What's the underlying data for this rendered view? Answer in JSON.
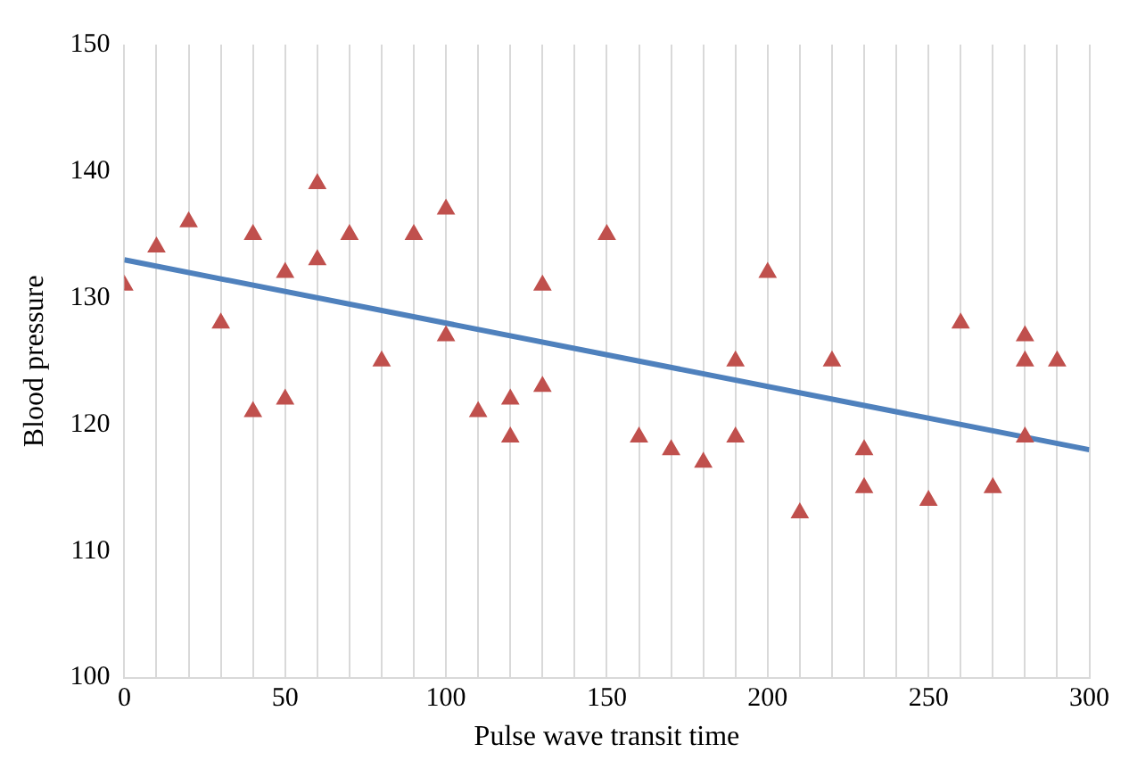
{
  "chart_data": {
    "type": "scatter",
    "xlabel": "Pulse wave transit time",
    "ylabel": "Blood pressure",
    "grid": "x",
    "xlim": [
      0,
      300
    ],
    "xticks": [
      0,
      {
        "value": 10,
        "label": null
      },
      {
        "value": 20,
        "label": null
      },
      {
        "value": 30,
        "label": null
      },
      {
        "value": 40,
        "label": null
      },
      50,
      {
        "value": 60,
        "label": null
      },
      {
        "value": 70,
        "label": null
      },
      {
        "value": 80,
        "label": null
      },
      {
        "value": 90,
        "label": null
      },
      100,
      {
        "value": 110,
        "label": null
      },
      {
        "value": 120,
        "label": null
      },
      {
        "value": 130,
        "label": null
      },
      {
        "value": 140,
        "label": null
      },
      150,
      {
        "value": 160,
        "label": null
      },
      {
        "value": 170,
        "label": null
      },
      {
        "value": 180,
        "label": null
      },
      {
        "value": 190,
        "label": null
      },
      200,
      {
        "value": 210,
        "label": null
      },
      {
        "value": 220,
        "label": null
      },
      {
        "value": 230,
        "label": null
      },
      {
        "value": 240,
        "label": null
      },
      250,
      {
        "value": 260,
        "label": null
      },
      {
        "value": 270,
        "label": null
      },
      {
        "value": 280,
        "label": null
      },
      {
        "value": 290,
        "label": null
      },
      300
    ],
    "ylim": [
      100,
      150
    ],
    "yticks": [
      100,
      110,
      120,
      130,
      140,
      150
    ],
    "series": [
      {
        "marker": "triangle",
        "color": "#c0504d",
        "x": [
          0,
          10,
          20,
          30,
          40,
          40,
          50,
          50,
          60,
          60,
          70,
          80,
          90,
          100,
          100,
          110,
          120,
          120,
          130,
          130,
          150,
          160,
          170,
          180,
          190,
          190,
          200,
          210,
          220,
          230,
          230,
          250,
          260,
          270,
          280,
          280,
          280,
          290
        ],
        "values": [
          131,
          134,
          136,
          128,
          135,
          121,
          132,
          122,
          139,
          133,
          135,
          125,
          135,
          137,
          127,
          121,
          122,
          119,
          131,
          123,
          135,
          119,
          118,
          117,
          125,
          119,
          132,
          113,
          125,
          118,
          115,
          114,
          128,
          115,
          127,
          125,
          119,
          125
        ]
      },
      {
        "type": "line",
        "color": "#4f81bd",
        "x": [
          0,
          300
        ],
        "values": [
          133,
          118
        ]
      }
    ]
  }
}
